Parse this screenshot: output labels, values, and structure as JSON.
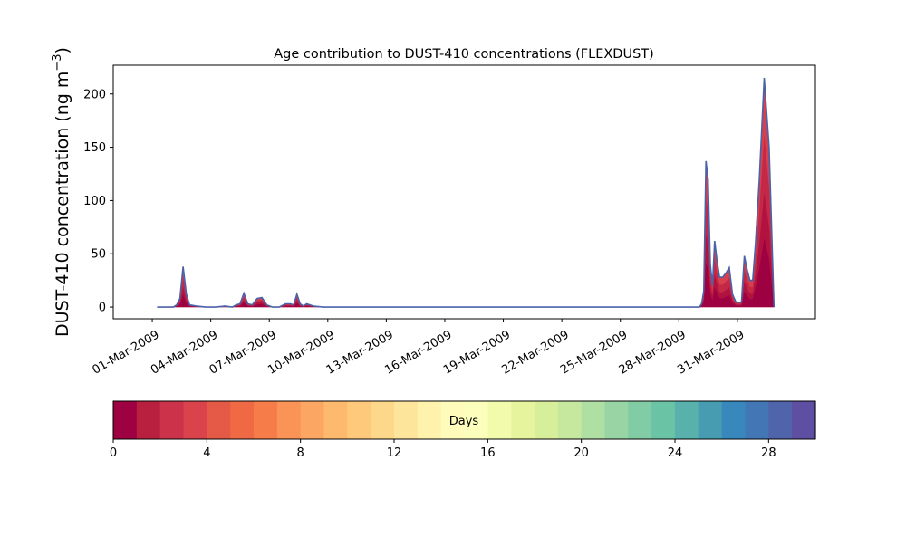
{
  "chart_data": {
    "type": "area",
    "title": "Age contribution to DUST-410 concentrations (FLEXDUST)",
    "ylabel_main": "DUST-410 concentration (ng m",
    "ylabel_sup": "−3",
    "ylabel_close": ")",
    "xlabel": "",
    "x_start": "2009-03-01",
    "x_end": "2009-04-02",
    "xlim": [
      "2009-02-27",
      "2009-04-04"
    ],
    "ylim": [
      -11,
      227
    ],
    "y_ticks": [
      0,
      50,
      100,
      150,
      200
    ],
    "x_tick_dates": [
      "2009-03-01",
      "2009-03-04",
      "2009-03-07",
      "2009-03-10",
      "2009-03-13",
      "2009-03-16",
      "2009-03-19",
      "2009-03-22",
      "2009-03-25",
      "2009-03-28",
      "2009-03-31"
    ],
    "x_tick_labels": [
      "01-Mar-2009",
      "04-Mar-2009",
      "07-Mar-2009",
      "10-Mar-2009",
      "13-Mar-2009",
      "16-Mar-2009",
      "19-Mar-2009",
      "22-Mar-2009",
      "25-Mar-2009",
      "28-Mar-2009",
      "31-Mar-2009"
    ],
    "series_total": [
      [
        "2009-03-01",
        0
      ],
      [
        "2009-03-01",
        0
      ],
      [
        "2009-03-02",
        0
      ],
      [
        "2009-03-02",
        2
      ],
      [
        "2009-03-02",
        8
      ],
      [
        "2009-03-02",
        38
      ],
      [
        "2009-03-02",
        12
      ],
      [
        "2009-03-02",
        2
      ],
      [
        "2009-03-03",
        1
      ],
      [
        "2009-03-03",
        0
      ],
      [
        "2009-03-04",
        0
      ],
      [
        "2009-03-04",
        1
      ],
      [
        "2009-03-05",
        0
      ],
      [
        "2009-03-05",
        2
      ],
      [
        "2009-03-05",
        3
      ],
      [
        "2009-03-05",
        13
      ],
      [
        "2009-03-05",
        3
      ],
      [
        "2009-03-06",
        2
      ],
      [
        "2009-03-06",
        8
      ],
      [
        "2009-03-06",
        9
      ],
      [
        "2009-03-06",
        2
      ],
      [
        "2009-03-07",
        0
      ],
      [
        "2009-03-07",
        0
      ],
      [
        "2009-03-07",
        3
      ],
      [
        "2009-03-08",
        3
      ],
      [
        "2009-03-08",
        2
      ],
      [
        "2009-03-08",
        12
      ],
      [
        "2009-03-08",
        3
      ],
      [
        "2009-03-08",
        1
      ],
      [
        "2009-03-08",
        3
      ],
      [
        "2009-03-09",
        1
      ],
      [
        "2009-03-09",
        0
      ],
      [
        "2009-03-29",
        0
      ],
      [
        "2009-03-29",
        3
      ],
      [
        "2009-03-29",
        15
      ],
      [
        "2009-03-29",
        137
      ],
      [
        "2009-03-29",
        120
      ],
      [
        "2009-03-29",
        40
      ],
      [
        "2009-03-29",
        20
      ],
      [
        "2009-03-29",
        62
      ],
      [
        "2009-03-29",
        45
      ],
      [
        "2009-03-30",
        28
      ],
      [
        "2009-03-30",
        28
      ],
      [
        "2009-03-30",
        32
      ],
      [
        "2009-03-30",
        37
      ],
      [
        "2009-03-30",
        12
      ],
      [
        "2009-03-30",
        5
      ],
      [
        "2009-03-31",
        4
      ],
      [
        "2009-03-31",
        5
      ],
      [
        "2009-03-31",
        48
      ],
      [
        "2009-03-31",
        35
      ],
      [
        "2009-03-31",
        25
      ],
      [
        "2009-03-31",
        25
      ],
      [
        "2009-03-31",
        60
      ],
      [
        "2009-04-01",
        120
      ],
      [
        "2009-04-01",
        215
      ],
      [
        "2009-04-01",
        150
      ],
      [
        "2009-04-01",
        0
      ]
    ],
    "total_color": "#4a62a8",
    "fill_layers": [
      {
        "fraction": 1.0,
        "color": "#d8404e"
      },
      {
        "fraction": 0.75,
        "color": "#c42847"
      },
      {
        "fraction": 0.5,
        "color": "#b1123f"
      },
      {
        "fraction": 0.3,
        "color": "#9e0142"
      }
    ],
    "colorbar": {
      "label": "Days",
      "range": [
        0,
        30
      ],
      "tick_values": [
        0,
        4,
        8,
        12,
        16,
        20,
        24,
        28
      ],
      "tick_labels": [
        "0",
        "4",
        "8",
        "12",
        "16",
        "20",
        "24",
        "28"
      ],
      "colors": [
        "#9e0142",
        "#b9203f",
        "#cc3249",
        "#db434c",
        "#e55a47",
        "#ef6a44",
        "#f67c4a",
        "#f99356",
        "#fba663",
        "#fdba6f",
        "#fec97b",
        "#fed88a",
        "#fee59c",
        "#fef2ac",
        "#fffbbb",
        "#fcffbc",
        "#f2faac",
        "#e6f59d",
        "#d7ef9b",
        "#c6e89e",
        "#b0dfa3",
        "#99d5a4",
        "#81cca5",
        "#6bc3a6",
        "#58b1aa",
        "#489cb1",
        "#3888bb",
        "#4276b5",
        "#5064ab",
        "#5e4fa2"
      ]
    }
  }
}
